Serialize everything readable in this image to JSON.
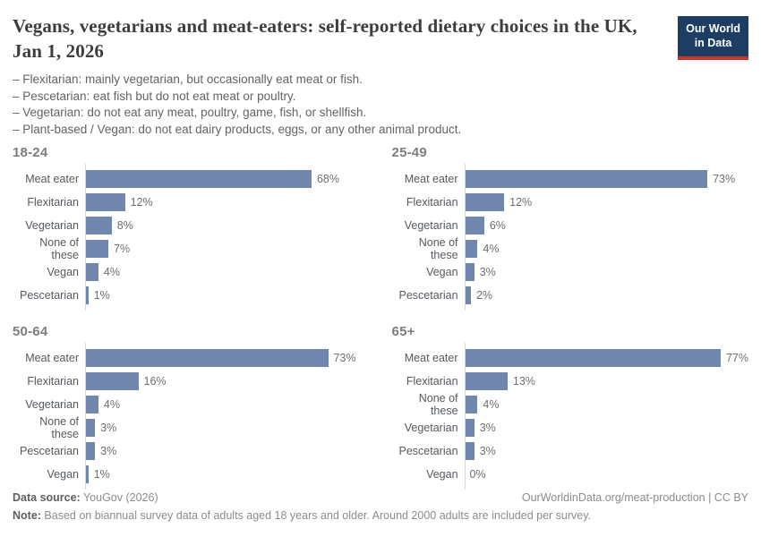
{
  "header": {
    "title": "Vegans, vegetarians and meat-eaters: self-reported dietary choices in the UK, Jan 1, 2026",
    "logo_line1": "Our World",
    "logo_line2": "in Data"
  },
  "definitions": [
    "– Flexitarian: mainly vegetarian, but occasionally eat meat or fish.",
    "– Pescetarian: eat fish but do not eat meat or poultry.",
    "– Vegetarian: do not eat any meat, poultry, game, fish, or shellfish.",
    "– Plant-based / Vegan: do not eat dairy products, eggs, or any other animal product."
  ],
  "chart_data": [
    {
      "type": "bar",
      "orientation": "horizontal",
      "title": "18-24",
      "categories": [
        "Meat eater",
        "Flexitarian",
        "Vegetarian",
        "None of these",
        "Vegan",
        "Pescetarian"
      ],
      "values": [
        68,
        12,
        8,
        7,
        4,
        1
      ],
      "unit": "%",
      "xlim": [
        0,
        100
      ],
      "grid": false,
      "value_labels": [
        "68%",
        "12%",
        "8%",
        "7%",
        "4%",
        "1%"
      ]
    },
    {
      "type": "bar",
      "orientation": "horizontal",
      "title": "25-49",
      "categories": [
        "Meat eater",
        "Flexitarian",
        "Vegetarian",
        "None of these",
        "Vegan",
        "Pescetarian"
      ],
      "values": [
        73,
        12,
        6,
        4,
        3,
        2
      ],
      "unit": "%",
      "xlim": [
        0,
        100
      ],
      "grid": false,
      "value_labels": [
        "73%",
        "12%",
        "6%",
        "4%",
        "3%",
        "2%"
      ]
    },
    {
      "type": "bar",
      "orientation": "horizontal",
      "title": "50-64",
      "categories": [
        "Meat eater",
        "Flexitarian",
        "Vegetarian",
        "None of these",
        "Pescetarian",
        "Vegan"
      ],
      "values": [
        73,
        16,
        4,
        3,
        3,
        1
      ],
      "unit": "%",
      "xlim": [
        0,
        100
      ],
      "grid": false,
      "value_labels": [
        "73%",
        "16%",
        "4%",
        "3%",
        "3%",
        "1%"
      ]
    },
    {
      "type": "bar",
      "orientation": "horizontal",
      "title": "65+",
      "categories": [
        "Meat eater",
        "Flexitarian",
        "None of these",
        "Vegetarian",
        "Pescetarian",
        "Vegan"
      ],
      "values": [
        77,
        13,
        4,
        3,
        3,
        0
      ],
      "unit": "%",
      "xlim": [
        0,
        100
      ],
      "grid": false,
      "value_labels": [
        "77%",
        "13%",
        "4%",
        "3%",
        "3%",
        "0%"
      ]
    }
  ],
  "colors": {
    "bar": "#7086ad",
    "logo_navy": "#1d3d63",
    "logo_red": "#c5372e"
  },
  "footer": {
    "source_label": "Data source:",
    "source_value": " YouGov (2026)",
    "link": "OurWorldinData.org/meat-production | CC BY",
    "note_label": "Note:",
    "note_value": " Based on biannual survey data of adults aged 18 years and older. Around 2000 adults are included per survey."
  }
}
